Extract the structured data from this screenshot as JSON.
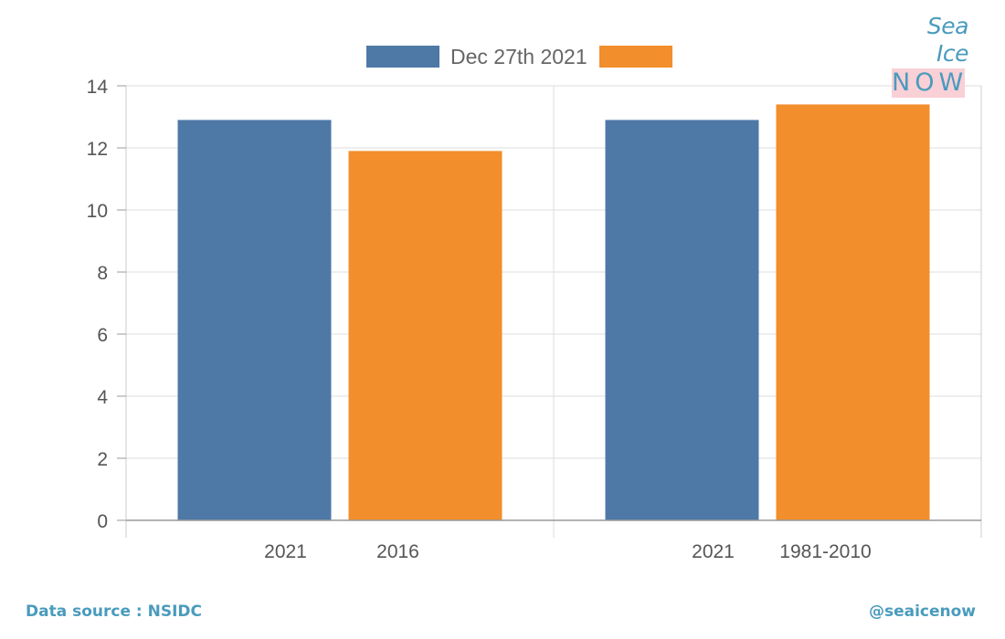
{
  "chart_data": {
    "type": "bar",
    "legend": {
      "placement": "top-center",
      "entries": [
        {
          "label": "Dec 27th 2021",
          "color": "#4e79a7"
        },
        {
          "label": "",
          "color": "#f28e2b"
        }
      ]
    },
    "ylim": [
      0,
      14
    ],
    "yticks": [
      0,
      2,
      4,
      6,
      8,
      10,
      12,
      14
    ],
    "grid": true,
    "groups": [
      {
        "bars": [
          {
            "label": "2021",
            "value": 12.9,
            "color": "#4e79a7"
          },
          {
            "label": "2016",
            "value": 11.9,
            "color": "#f28e2b"
          }
        ]
      },
      {
        "bars": [
          {
            "label": "2021",
            "value": 12.9,
            "color": "#4e79a7"
          },
          {
            "label": "1981-2010",
            "value": 13.4,
            "color": "#f28e2b"
          }
        ]
      }
    ]
  },
  "logo": {
    "line1": "Sea Ice",
    "line2": "NOW"
  },
  "footer": {
    "source": "Data source : NSIDC",
    "handle": "@seaicenow"
  }
}
